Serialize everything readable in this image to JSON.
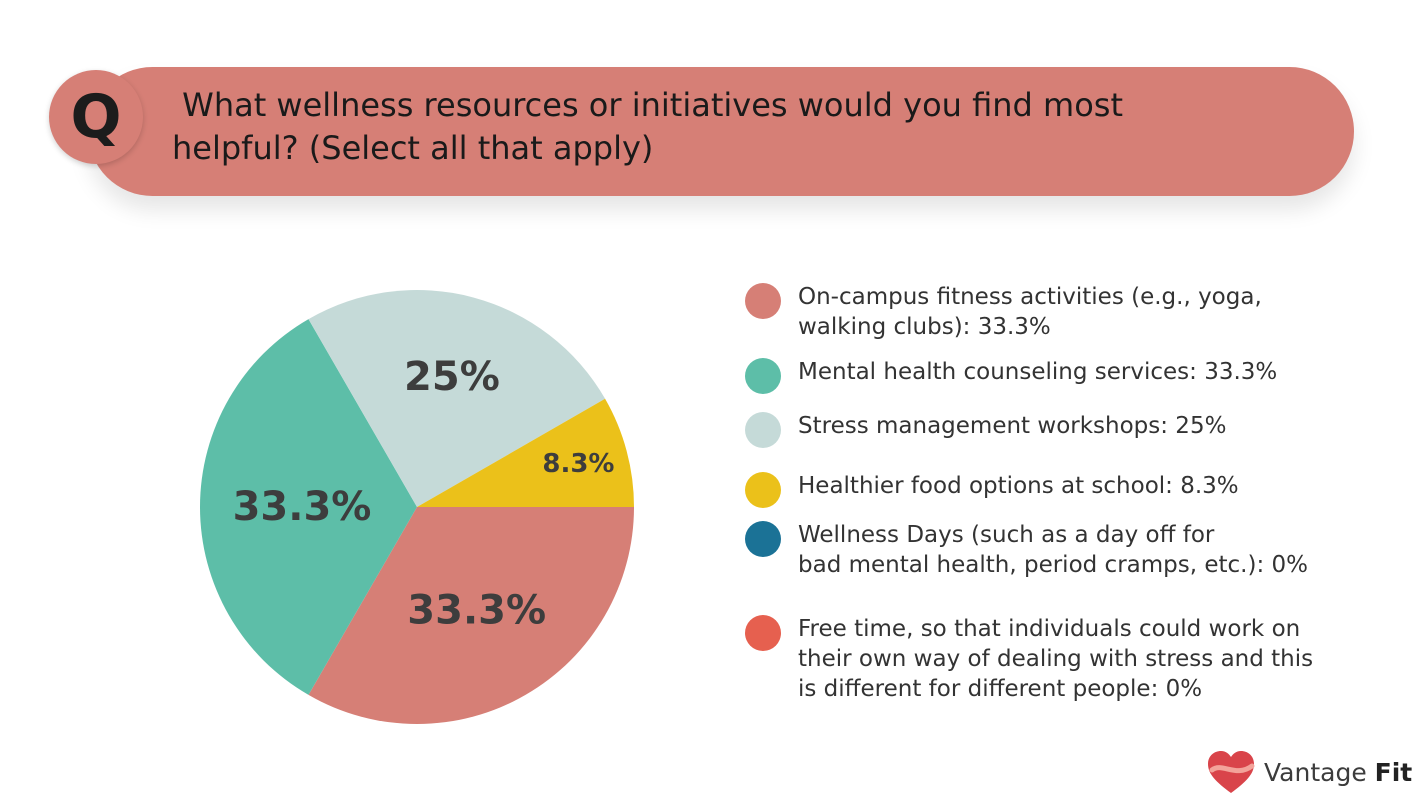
{
  "question": {
    "badge": "Q",
    "text": " What wellness resources or initiatives would you find most\nhelpful? (Select all that apply)"
  },
  "chart_data": {
    "type": "pie",
    "slices": [
      {
        "label": "On-campus fitness activities (e.g., yoga, walking clubs): 33.3%",
        "value": 33.3,
        "display": "33.3%",
        "color": "#d67f76"
      },
      {
        "label": "Mental health counseling services: 33.3%",
        "value": 33.3,
        "display": "33.3%",
        "color": "#5dbea8"
      },
      {
        "label": "Stress management workshops: 25%",
        "value": 25,
        "display": "25%",
        "color": "#c5dad8"
      },
      {
        "label": "Healthier food options at school: 8.3%",
        "value": 8.3,
        "display": "8.3%",
        "color": "#ebc11a"
      },
      {
        "label": "Wellness Days (such as a day off for bad mental health, period cramps, etc.): 0%",
        "value": 0,
        "display": "",
        "color": "#1b7296"
      },
      {
        "label": "Free time, so that individuals could work on their own way of dealing with stress and this is different for different people: 0%",
        "value": 0,
        "display": "",
        "color": "#e6604f"
      }
    ],
    "legend_position": "right"
  },
  "legend": [
    {
      "text": "On-campus fitness activities (e.g., yoga,\nwalking clubs): 33.3%",
      "color": "#d67f76"
    },
    {
      "text": "Mental health counseling services: 33.3%",
      "color": "#5dbea8"
    },
    {
      "text": "Stress management workshops: 25%",
      "color": "#c5dad8"
    },
    {
      "text": "Healthier food options at school: 8.3%",
      "color": "#ebc11a"
    },
    {
      "text": "Wellness Days (such as a day off for\nbad mental health, period cramps, etc.): 0%",
      "color": "#1b7296"
    },
    {
      "text": "Free time, so that individuals could work on\ntheir own way of dealing with stress and this\nis different for different people: 0%",
      "color": "#e6604f"
    }
  ],
  "brand": {
    "name_regular": "Vantage ",
    "name_bold": "Fit",
    "logo_icon": "heart-icon",
    "logo_color": "#d9444a"
  }
}
